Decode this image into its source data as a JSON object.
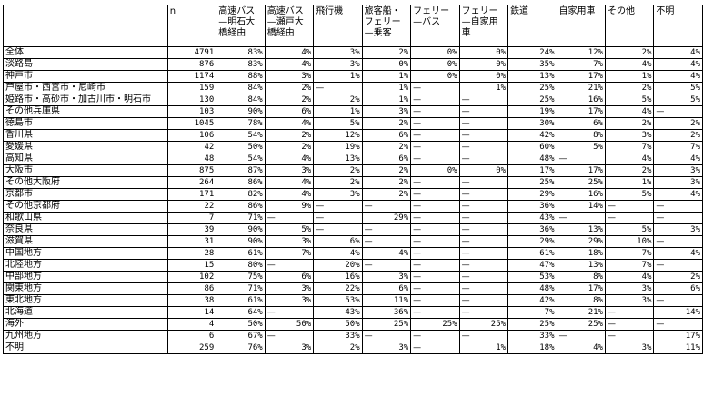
{
  "headers": [
    "",
    "n",
    "高速バス—明石大橋経由",
    "高速バス—瀬戸大橋経由",
    "飛行機",
    "旅客船・フェリー—乗客",
    "フェリー—バス",
    "フェリー—自家用車",
    "鉄道",
    "自家用車",
    "その他",
    "不明"
  ],
  "rows": [
    [
      "全体",
      "4791",
      "83%",
      "4%",
      "3%",
      "2%",
      "0%",
      "0%",
      "24%",
      "12%",
      "2%",
      "4%"
    ],
    [
      "淡路島",
      "876",
      "83%",
      "4%",
      "3%",
      "0%",
      "0%",
      "0%",
      "35%",
      "7%",
      "4%",
      "4%"
    ],
    [
      "神戸市",
      "1174",
      "88%",
      "3%",
      "1%",
      "1%",
      "0%",
      "0%",
      "13%",
      "17%",
      "1%",
      "4%"
    ],
    [
      "芦屋市・西宮市・尼崎市",
      "159",
      "84%",
      "2%",
      "—",
      "1%",
      "—",
      "1%",
      "25%",
      "21%",
      "2%",
      "5%"
    ],
    [
      "姫路市・高砂市・加古川市・明石市",
      "130",
      "84%",
      "2%",
      "2%",
      "1%",
      "—",
      "—",
      "25%",
      "16%",
      "5%",
      "5%"
    ],
    [
      "その他兵庫県",
      "103",
      "90%",
      "6%",
      "1%",
      "3%",
      "—",
      "—",
      "19%",
      "17%",
      "4%",
      "—"
    ],
    [
      "徳島市",
      "1045",
      "78%",
      "4%",
      "5%",
      "2%",
      "—",
      "—",
      "30%",
      "6%",
      "2%",
      "2%"
    ],
    [
      "香川県",
      "106",
      "54%",
      "2%",
      "12%",
      "6%",
      "—",
      "—",
      "42%",
      "8%",
      "3%",
      "2%"
    ],
    [
      "愛媛県",
      "42",
      "50%",
      "2%",
      "19%",
      "2%",
      "—",
      "—",
      "60%",
      "5%",
      "7%",
      "7%"
    ],
    [
      "高知県",
      "48",
      "54%",
      "4%",
      "13%",
      "6%",
      "—",
      "—",
      "48%",
      "—",
      "4%",
      "4%"
    ],
    [
      "大阪市",
      "875",
      "87%",
      "3%",
      "2%",
      "2%",
      "0%",
      "0%",
      "17%",
      "17%",
      "2%",
      "3%"
    ],
    [
      "その他大阪府",
      "264",
      "86%",
      "4%",
      "2%",
      "2%",
      "—",
      "—",
      "25%",
      "25%",
      "1%",
      "3%"
    ],
    [
      "京都市",
      "171",
      "82%",
      "4%",
      "3%",
      "2%",
      "—",
      "—",
      "29%",
      "16%",
      "5%",
      "4%"
    ],
    [
      "その他京都府",
      "22",
      "86%",
      "9%",
      "—",
      "—",
      "—",
      "—",
      "36%",
      "14%",
      "—",
      "—"
    ],
    [
      "和歌山県",
      "7",
      "71%",
      "—",
      "—",
      "29%",
      "—",
      "—",
      "43%",
      "—",
      "—",
      "—"
    ],
    [
      "奈良県",
      "39",
      "90%",
      "5%",
      "—",
      "—",
      "—",
      "—",
      "36%",
      "13%",
      "5%",
      "3%"
    ],
    [
      "滋賀県",
      "31",
      "90%",
      "3%",
      "6%",
      "—",
      "—",
      "—",
      "29%",
      "29%",
      "10%",
      "—"
    ],
    [
      "中国地方",
      "28",
      "61%",
      "7%",
      "4%",
      "4%",
      "—",
      "—",
      "61%",
      "18%",
      "7%",
      "4%"
    ],
    [
      "北陸地方",
      "15",
      "80%",
      "—",
      "20%",
      "—",
      "—",
      "—",
      "47%",
      "13%",
      "7%",
      "—"
    ],
    [
      "中部地方",
      "102",
      "75%",
      "6%",
      "16%",
      "3%",
      "—",
      "—",
      "53%",
      "8%",
      "4%",
      "2%"
    ],
    [
      "関東地方",
      "86",
      "71%",
      "3%",
      "22%",
      "6%",
      "—",
      "—",
      "48%",
      "17%",
      "3%",
      "6%"
    ],
    [
      "東北地方",
      "38",
      "61%",
      "3%",
      "53%",
      "11%",
      "—",
      "—",
      "42%",
      "8%",
      "3%",
      "—"
    ],
    [
      "北海道",
      "14",
      "64%",
      "—",
      "43%",
      "36%",
      "—",
      "—",
      "7%",
      "21%",
      "—",
      "14%"
    ],
    [
      "海外",
      "4",
      "50%",
      "50%",
      "50%",
      "25%",
      "25%",
      "25%",
      "25%",
      "25%",
      "—",
      "—"
    ],
    [
      "九州地方",
      "6",
      "67%",
      "—",
      "33%",
      "—",
      "—",
      "—",
      "33%",
      "—",
      "—",
      "17%"
    ],
    [
      "不明",
      "259",
      "76%",
      "3%",
      "2%",
      "3%",
      "—",
      "1%",
      "18%",
      "4%",
      "3%",
      "11%"
    ]
  ]
}
